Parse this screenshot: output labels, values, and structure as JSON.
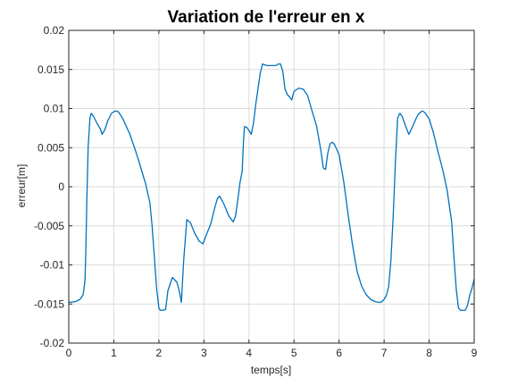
{
  "chart_data": {
    "type": "line",
    "title": "Variation de l'erreur en x",
    "xlabel": "temps[s]",
    "ylabel": "erreur[m]",
    "xlim": [
      0,
      9
    ],
    "ylim": [
      -0.02,
      0.02
    ],
    "grid": true,
    "colors": {
      "series": "#0072bd",
      "grid": "#dcdcdc",
      "axis": "#262626"
    },
    "x_ticks": [
      0,
      1,
      2,
      3,
      4,
      5,
      6,
      7,
      8,
      9
    ],
    "x_tick_labels": [
      "0",
      "1",
      "2",
      "3",
      "4",
      "5",
      "6",
      "7",
      "8",
      "9"
    ],
    "y_ticks": [
      -0.02,
      -0.015,
      -0.01,
      -0.005,
      0,
      0.005,
      0.01,
      0.015,
      0.02
    ],
    "y_tick_labels": [
      "-0.02",
      "-0.015",
      "-0.01",
      "-0.005",
      "0",
      "0.005",
      "0.01",
      "0.015",
      "0.02"
    ],
    "series": [
      {
        "x": [
          0,
          0.15,
          0.25,
          0.32,
          0.36,
          0.38,
          0.4,
          0.43,
          0.47,
          0.5,
          0.55,
          0.62,
          0.7,
          0.74,
          0.8,
          0.87,
          0.95,
          1.03,
          1.1,
          1.2,
          1.35,
          1.5,
          1.6,
          1.7,
          1.8,
          1.85,
          1.9,
          1.95,
          2.0,
          2.03,
          2.08,
          2.15,
          2.2,
          2.3,
          2.4,
          2.43,
          2.46,
          2.5,
          2.55,
          2.62,
          2.7,
          2.8,
          2.9,
          2.98,
          3.05,
          3.15,
          3.25,
          3.3,
          3.35,
          3.45,
          3.55,
          3.65,
          3.7,
          3.75,
          3.8,
          3.85,
          3.88,
          3.9,
          3.95,
          4.0,
          4.05,
          4.1,
          4.15,
          4.2,
          4.25,
          4.3,
          4.35,
          4.4,
          4.5,
          4.6,
          4.65,
          4.7,
          4.75,
          4.8,
          4.85,
          4.9,
          4.95,
          5.0,
          5.1,
          5.2,
          5.3,
          5.4,
          5.5,
          5.6,
          5.65,
          5.7,
          5.75,
          5.8,
          5.85,
          5.9,
          6.0,
          6.1,
          6.2,
          6.3,
          6.4,
          6.5,
          6.6,
          6.7,
          6.8,
          6.9,
          6.95,
          7.0,
          7.05,
          7.1,
          7.15,
          7.2,
          7.25,
          7.3,
          7.35,
          7.4,
          7.45,
          7.5,
          7.55,
          7.6,
          7.7,
          7.75,
          7.8,
          7.85,
          7.9,
          8.0,
          8.1,
          8.2,
          8.3,
          8.4,
          8.5,
          8.55,
          8.6,
          8.65,
          8.7,
          8.75,
          8.8,
          8.85,
          8.9,
          8.95,
          9.0
        ],
        "y": [
          -0.0148,
          -0.0147,
          -0.0144,
          -0.0138,
          -0.012,
          -0.008,
          -0.002,
          0.005,
          0.0088,
          0.0094,
          0.009,
          0.0082,
          0.0074,
          0.0067,
          0.0073,
          0.0085,
          0.0094,
          0.0097,
          0.0096,
          0.0087,
          0.0068,
          0.0043,
          0.0024,
          0.0005,
          -0.002,
          -0.005,
          -0.009,
          -0.013,
          -0.0155,
          -0.0158,
          -0.0158,
          -0.0157,
          -0.0133,
          -0.0116,
          -0.0122,
          -0.0128,
          -0.0135,
          -0.0148,
          -0.0095,
          -0.0042,
          -0.0046,
          -0.006,
          -0.007,
          -0.0073,
          -0.0062,
          -0.0048,
          -0.0025,
          -0.0015,
          -0.0012,
          -0.0023,
          -0.0037,
          -0.0045,
          -0.0038,
          -0.0018,
          0.0005,
          0.002,
          0.006,
          0.0077,
          0.0076,
          0.0072,
          0.0067,
          0.0081,
          0.0105,
          0.0125,
          0.0145,
          0.0157,
          0.0156,
          0.0155,
          0.0155,
          0.0155,
          0.0157,
          0.0157,
          0.0148,
          0.0125,
          0.0118,
          0.0115,
          0.0111,
          0.0122,
          0.0126,
          0.0125,
          0.0117,
          0.0097,
          0.0078,
          0.0045,
          0.0024,
          0.0022,
          0.0043,
          0.0055,
          0.0057,
          0.0054,
          0.0041,
          0.0008,
          -0.0035,
          -0.0075,
          -0.0108,
          -0.0127,
          -0.0138,
          -0.0144,
          -0.0147,
          -0.0148,
          -0.0147,
          -0.0144,
          -0.0139,
          -0.0128,
          -0.0095,
          -0.004,
          0.003,
          0.0088,
          0.0094,
          0.009,
          0.0082,
          0.0074,
          0.0067,
          0.0073,
          0.0086,
          0.0092,
          0.0095,
          0.0097,
          0.0095,
          0.0087,
          0.0068,
          0.0044,
          0.0022,
          -0.0005,
          -0.0045,
          -0.009,
          -0.013,
          -0.0155,
          -0.0158,
          -0.0158,
          -0.0158,
          -0.0152,
          -0.0139,
          -0.013,
          -0.0118
        ]
      }
    ]
  }
}
